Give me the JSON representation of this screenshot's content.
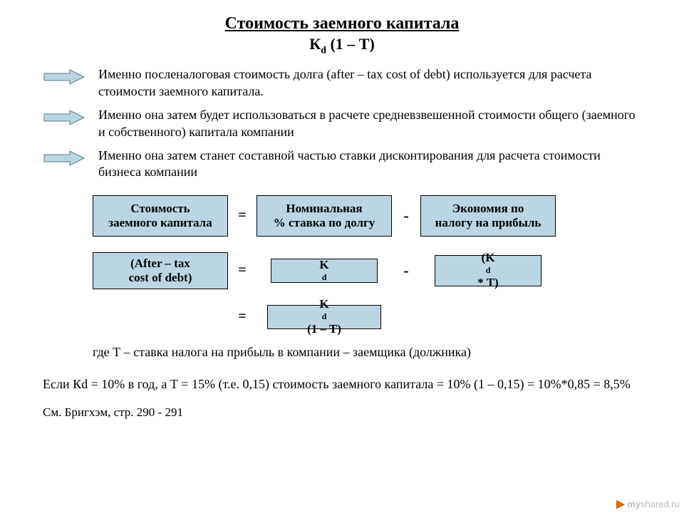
{
  "title": {
    "main": "Стоимость заемного капитала",
    "sub_html": "К<sub>d</sub> (1 – Т)"
  },
  "arrow": {
    "fill": "#bbd6e2",
    "stroke": "#5a7a88"
  },
  "bullets": [
    "Именно посленалоговая стоимость долга (after – tax cost of debt) используется для расчета стоимости заемного капитала.",
    "Именно она затем будет использоваться в расчете средневзвешенной стоимости общего (заемного и собственного) капитала компании",
    "Именно она затем станет составной частью ставки дисконтирования для расчета стоимости бизнеса компании"
  ],
  "formula": {
    "row1": {
      "a_line1": "Стоимость",
      "a_line2": "заемного капитала",
      "eq": "=",
      "b_line1": "Номинальная",
      "b_line2": "% ставка по долгу",
      "minus": "-",
      "c_line1": "Экономия по",
      "c_line2": "налогу на прибыль"
    },
    "row2": {
      "a_line1": "(After – tax",
      "a_line2": "cost of debt)",
      "eq": "=",
      "b_html": "K<sub>d</sub>",
      "minus": "-",
      "c_html": "(K<sub>d</sub> * T)"
    },
    "row3": {
      "eq": "=",
      "b_html": "K<sub>d</sub> (1 – T)"
    }
  },
  "where": "где Т – ставка налога на прибыль в компании – заемщика (должника)",
  "example": "Если Кd = 10% в год, а Т = 15% (т.е. 0,15) стоимость заемного капитала = 10% (1 – 0,15) = 10%*0,85 = 8,5%",
  "reference": "См. Бригхэм, стр. 290 - 291",
  "watermark": {
    "left": "my",
    "right": "shared.ru"
  },
  "colors": {
    "box_fill": "#bbd6e2",
    "box_border": "#000000",
    "background": "#ffffff",
    "text": "#000000"
  },
  "fonts": {
    "body_family": "Times New Roman",
    "title_size_pt": 18,
    "body_size_pt": 14
  }
}
